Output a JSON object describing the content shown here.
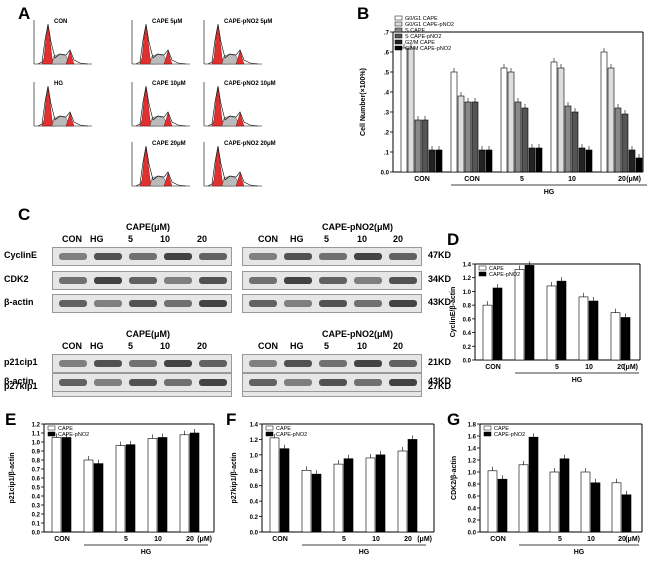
{
  "panels": {
    "a": "A",
    "b": "B",
    "c": "C",
    "d": "D",
    "e": "E",
    "f": "F",
    "g": "G"
  },
  "flow": {
    "titles": [
      "CON",
      "CAPE 5μM",
      "CAPE-pNO2 5μM",
      "HG",
      "CAPE 10μM",
      "CAPE-pNO2 10μM",
      "CAPE 20μM",
      "CAPE-pNO2 20μM"
    ]
  },
  "western": {
    "lanes_left_top": [
      "CON",
      "HG",
      "5",
      "10",
      "20"
    ],
    "lanes_right_top": [
      "CON",
      "HG",
      "5",
      "10",
      "20"
    ],
    "cape_header": "CAPE(μM)",
    "pno2_header": "CAPE-pNO2(μM)",
    "row_labels_top": [
      "CyclinE",
      "CDK2",
      "β-actin"
    ],
    "kd_top": [
      "47KD",
      "34KD",
      "43KD"
    ],
    "row_labels_bottom": [
      "p21cip1",
      "p27kip1",
      "β-actin"
    ],
    "kd_bottom": [
      "21KD",
      "27KD",
      "43KD"
    ]
  },
  "chart_data": [
    {
      "panel": "B",
      "type": "bar",
      "ylabel": "Cell Number(×100%)",
      "ylim": [
        0,
        0.7
      ],
      "yticks": [
        "0.0",
        ".1",
        ".2",
        ".3",
        ".4",
        ".5",
        ".6",
        ".7"
      ],
      "categories": [
        "CON",
        "CON",
        "5",
        "10",
        "20"
      ],
      "xgroup_label": "HG",
      "xunit": "(μM)",
      "legend": [
        "G0/G1 CAPE",
        "G0/G1 CAPE-pNO2",
        "S CAPE",
        "S CAPE-pNO2",
        "G2/M CAPE",
        "G2/M CAPE-pNO2"
      ],
      "series": [
        {
          "values": [
            0.62,
            0.5,
            0.52,
            0.55,
            0.6
          ]
        },
        {
          "values": [
            0.62,
            0.38,
            0.5,
            0.52,
            0.52
          ]
        },
        {
          "values": [
            0.26,
            0.35,
            0.35,
            0.33,
            0.32
          ]
        },
        {
          "values": [
            0.26,
            0.35,
            0.32,
            0.3,
            0.29
          ]
        },
        {
          "values": [
            0.11,
            0.11,
            0.12,
            0.12,
            0.11
          ]
        },
        {
          "values": [
            0.11,
            0.11,
            0.12,
            0.11,
            0.07
          ]
        }
      ]
    },
    {
      "panel": "D",
      "type": "bar",
      "ylabel": "CyclinE/β-actin",
      "ylim": [
        0,
        1.4
      ],
      "yticks": [
        "0.0",
        "0.2",
        "0.4",
        "0.6",
        "0.8",
        "1.0",
        "1.2",
        "1.4"
      ],
      "categories": [
        "CON",
        "",
        "5",
        "10",
        "20"
      ],
      "xgroup_label": "HG",
      "xunit": "(μM)",
      "legend": [
        "CAPE",
        "CAPE-pNO2"
      ],
      "series": [
        {
          "name": "CAPE",
          "values": [
            0.8,
            1.32,
            1.08,
            0.92,
            0.69
          ]
        },
        {
          "name": "CAPE-pNO2",
          "values": [
            1.05,
            1.38,
            1.15,
            0.86,
            0.62
          ]
        }
      ]
    },
    {
      "panel": "E",
      "type": "bar",
      "ylabel": "p21cip1/β-actin",
      "ylim": [
        0,
        1.2
      ],
      "yticks": [
        "0.0",
        "0.1",
        "0.2",
        "0.3",
        "0.4",
        "0.5",
        "0.6",
        "0.7",
        "0.8",
        "0.9",
        "1.0",
        "1.1",
        "1.2"
      ],
      "categories": [
        "CON",
        "",
        "5",
        "10",
        "20"
      ],
      "xgroup_label": "HG",
      "xunit": "(μM)",
      "legend": [
        "CAPE",
        "CAPE-pNO2"
      ],
      "series": [
        {
          "name": "CAPE",
          "values": [
            1.05,
            0.8,
            0.96,
            1.04,
            1.08
          ]
        },
        {
          "name": "CAPE-pNO2",
          "values": [
            1.05,
            0.76,
            0.97,
            1.05,
            1.1
          ]
        }
      ]
    },
    {
      "panel": "F",
      "type": "bar",
      "ylabel": "p27kip1/β-actin",
      "ylim": [
        0,
        1.4
      ],
      "yticks": [
        "0.0",
        "0.2",
        "0.4",
        "0.6",
        "0.8",
        "1.0",
        "1.2",
        "1.4"
      ],
      "categories": [
        "CON",
        "",
        "5",
        "10",
        "20"
      ],
      "xgroup_label": "HG",
      "xunit": "(μM)",
      "legend": [
        "CAPE",
        "CAPE-pNO2"
      ],
      "series": [
        {
          "name": "CAPE",
          "values": [
            1.22,
            0.8,
            0.88,
            0.96,
            1.05
          ]
        },
        {
          "name": "CAPE-pNO2",
          "values": [
            1.08,
            0.75,
            0.95,
            1.0,
            1.2
          ]
        }
      ]
    },
    {
      "panel": "G",
      "type": "bar",
      "ylabel": "CDK2/β-actin",
      "ylim": [
        0,
        1.8
      ],
      "yticks": [
        "0.0",
        "0.2",
        "0.4",
        "0.6",
        "0.8",
        "1.0",
        "1.2",
        "1.4",
        "1.6",
        "1.8"
      ],
      "categories": [
        "CON",
        "",
        "5",
        "10",
        "20"
      ],
      "xgroup_label": "HG",
      "xunit": "(μM)",
      "legend": [
        "CAPE",
        "CAPE-pNO2"
      ],
      "series": [
        {
          "name": "CAPE",
          "values": [
            1.02,
            1.12,
            1.0,
            1.0,
            0.82
          ]
        },
        {
          "name": "CAPE-pNO2",
          "values": [
            0.88,
            1.58,
            1.22,
            0.82,
            0.62
          ]
        }
      ]
    }
  ]
}
